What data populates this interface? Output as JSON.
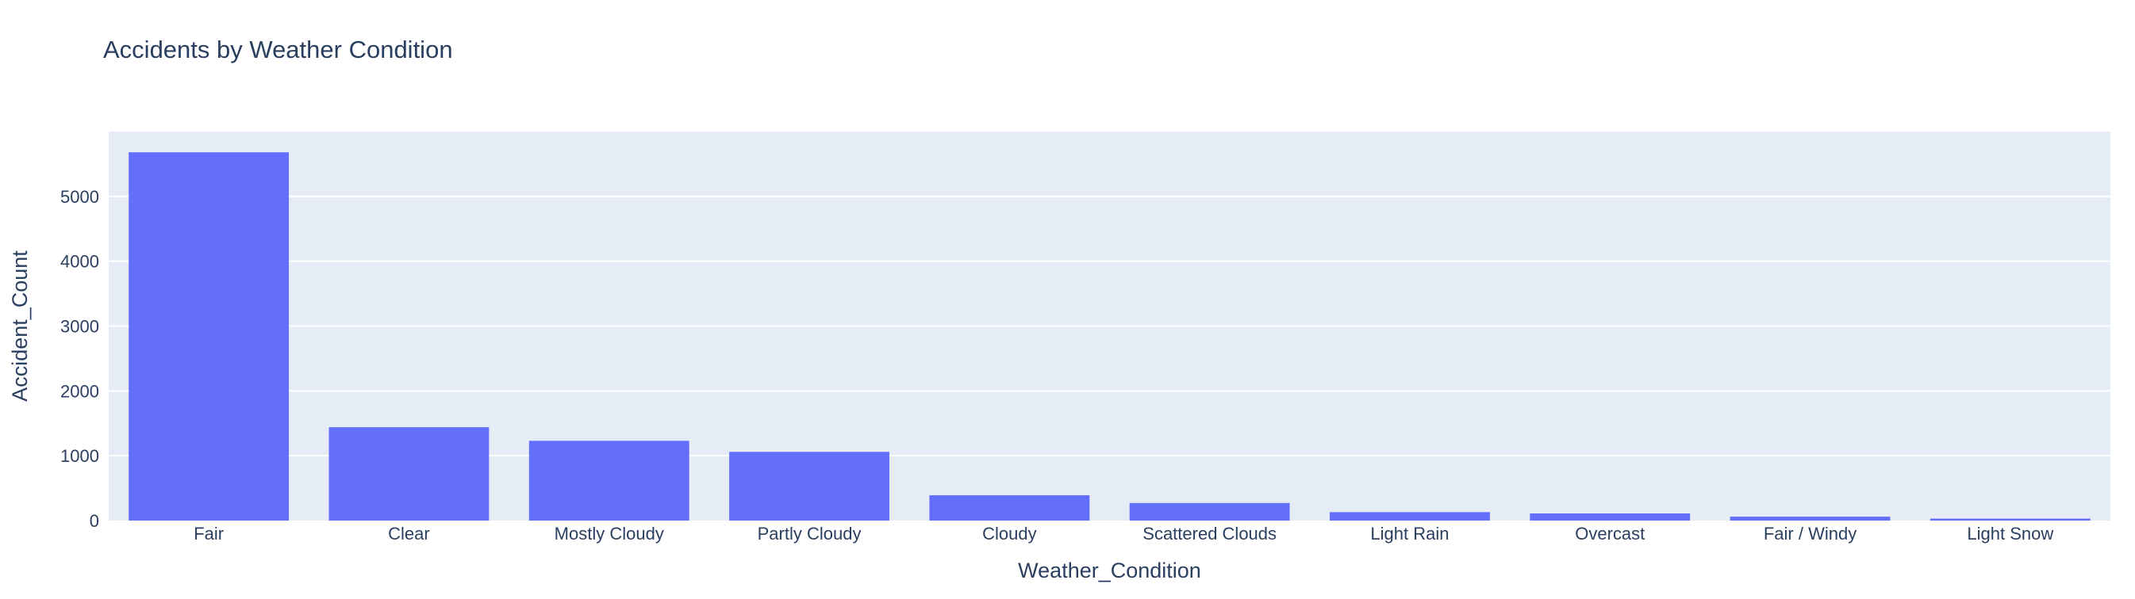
{
  "chart_data": {
    "type": "bar",
    "title": "Accidents by Weather Condition",
    "xlabel": "Weather_Condition",
    "ylabel": "Accident_Count",
    "categories": [
      "Fair",
      "Clear",
      "Mostly Cloudy",
      "Partly Cloudy",
      "Cloudy",
      "Scattered Clouds",
      "Light Rain",
      "Overcast",
      "Fair / Windy",
      "Light Snow"
    ],
    "values": [
      5680,
      1440,
      1230,
      1060,
      390,
      270,
      130,
      110,
      60,
      30
    ],
    "ylim": [
      0,
      6000
    ],
    "yticks": [
      0,
      1000,
      2000,
      3000,
      4000,
      5000
    ],
    "grid": true,
    "legend": "none",
    "colors": {
      "bar": "#636efa",
      "plot_bg": "#e5ecf6",
      "grid": "#ffffff",
      "text": "#2a3f5f"
    }
  }
}
